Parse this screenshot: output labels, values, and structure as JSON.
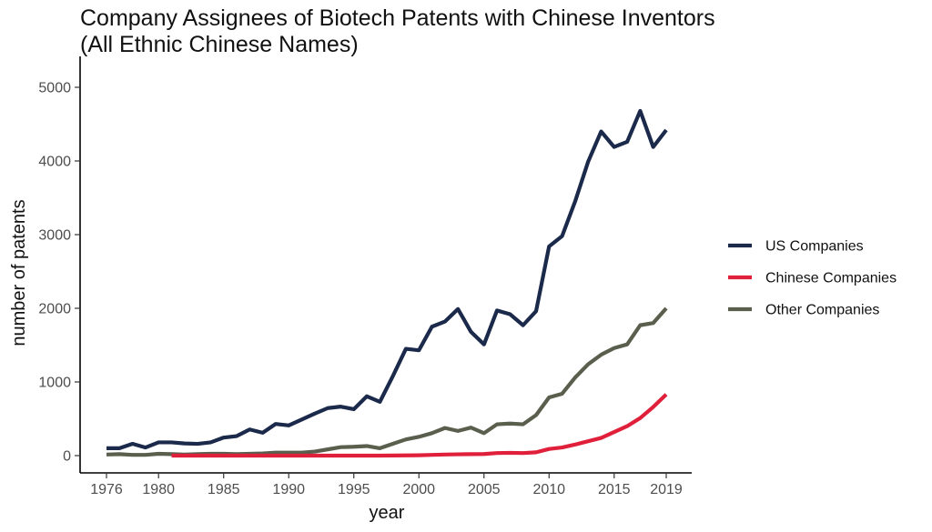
{
  "chart_data": {
    "type": "line",
    "title_line1": "Company Assignees of Biotech Patents with Chinese Inventors",
    "title_line2": "(All Ethnic Chinese Names)",
    "xlabel": "year",
    "ylabel": "number of patents",
    "xlim": [
      1976,
      2019
    ],
    "ylim": [
      0,
      5000
    ],
    "xticks": [
      1976,
      1980,
      1985,
      1990,
      1995,
      2000,
      2005,
      2010,
      2015,
      2019
    ],
    "yticks": [
      0,
      1000,
      2000,
      3000,
      4000,
      5000
    ],
    "grid": false,
    "legend_position": "right",
    "series": [
      {
        "name": "US Companies",
        "color": "#1b2a4a",
        "x": [
          1976,
          1977,
          1978,
          1979,
          1980,
          1981,
          1982,
          1983,
          1984,
          1985,
          1986,
          1987,
          1988,
          1989,
          1990,
          1991,
          1992,
          1993,
          1994,
          1995,
          1996,
          1997,
          1998,
          1999,
          2000,
          2001,
          2002,
          2003,
          2004,
          2005,
          2006,
          2007,
          2008,
          2009,
          2010,
          2011,
          2012,
          2013,
          2014,
          2015,
          2016,
          2017,
          2018,
          2019
        ],
        "y": [
          100,
          100,
          160,
          110,
          180,
          180,
          165,
          160,
          180,
          245,
          265,
          355,
          310,
          430,
          410,
          490,
          570,
          645,
          665,
          630,
          805,
          730,
          1080,
          1450,
          1430,
          1750,
          1820,
          1990,
          1680,
          1510,
          1970,
          1920,
          1770,
          1960,
          2840,
          2980,
          3450,
          3990,
          4400,
          4190,
          4260,
          4680,
          4190,
          4420
        ]
      },
      {
        "name": "Chinese Companies",
        "color": "#e0203a",
        "x": [
          1981,
          1982,
          1983,
          1984,
          1985,
          1986,
          1987,
          1988,
          1989,
          1990,
          1991,
          1992,
          1993,
          1994,
          1995,
          1996,
          1997,
          1998,
          1999,
          2000,
          2001,
          2002,
          2003,
          2004,
          2005,
          2006,
          2007,
          2008,
          2009,
          2010,
          2011,
          2012,
          2013,
          2014,
          2015,
          2016,
          2017,
          2018,
          2019
        ],
        "y": [
          0,
          0,
          0,
          0,
          0,
          0,
          0,
          0,
          0,
          0,
          0,
          0,
          0,
          0,
          0,
          0,
          0,
          2,
          3,
          5,
          10,
          15,
          18,
          20,
          22,
          35,
          38,
          35,
          45,
          90,
          110,
          150,
          195,
          240,
          320,
          400,
          510,
          660,
          830
        ]
      },
      {
        "name": "Other Companies",
        "color": "#5a5e4c",
        "x": [
          1976,
          1977,
          1978,
          1979,
          1980,
          1981,
          1982,
          1983,
          1984,
          1985,
          1986,
          1987,
          1988,
          1989,
          1990,
          1991,
          1992,
          1993,
          1994,
          1995,
          1996,
          1997,
          1998,
          1999,
          2000,
          2001,
          2002,
          2003,
          2004,
          2005,
          2006,
          2007,
          2008,
          2009,
          2010,
          2011,
          2012,
          2013,
          2014,
          2015,
          2016,
          2017,
          2018,
          2019
        ],
        "y": [
          15,
          20,
          10,
          10,
          25,
          20,
          15,
          20,
          25,
          25,
          20,
          25,
          30,
          40,
          40,
          40,
          55,
          85,
          115,
          120,
          130,
          100,
          160,
          220,
          255,
          305,
          375,
          335,
          380,
          305,
          425,
          435,
          425,
          550,
          790,
          840,
          1060,
          1240,
          1370,
          1460,
          1510,
          1770,
          1800,
          2000
        ]
      }
    ]
  }
}
